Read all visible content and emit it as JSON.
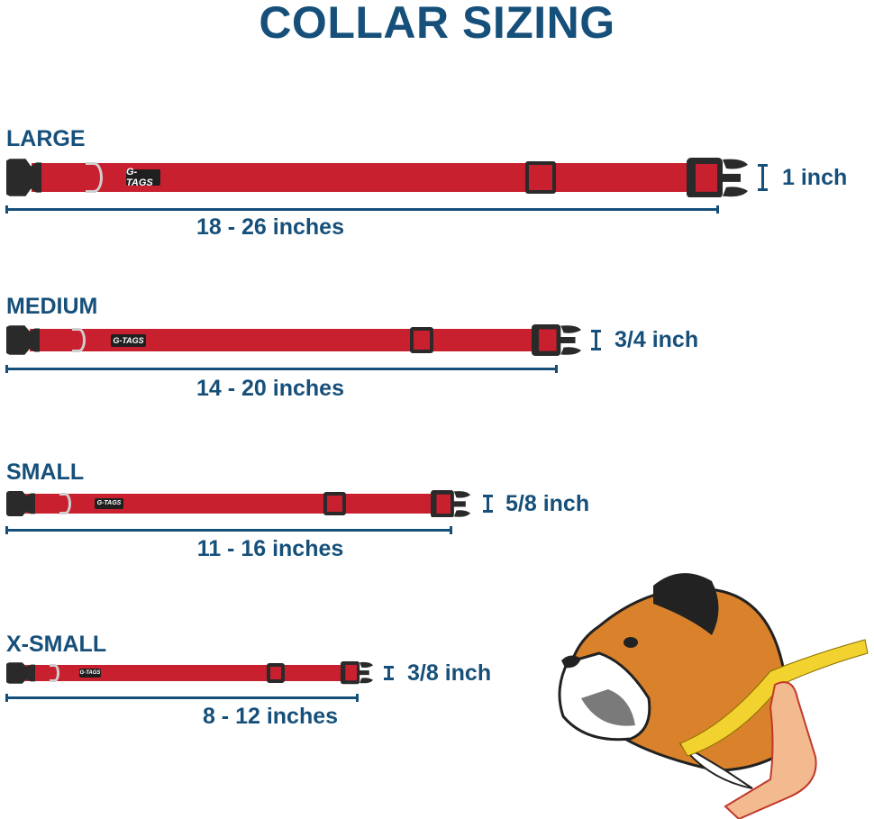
{
  "title": "COLLAR SIZING",
  "brand_tag": "G-TAGS",
  "colors": {
    "text": "#16507a",
    "strap": "#c8202f",
    "hardware": "#2a2a2a",
    "tape": "#f2d22e"
  },
  "sizes": [
    {
      "label": "LARGE",
      "range": "18 - 26 inches",
      "width": "1 inch"
    },
    {
      "label": "MEDIUM",
      "range": "14 - 20 inches",
      "width": "3/4 inch"
    },
    {
      "label": "SMALL",
      "range": "11 - 16 inches",
      "width": "5/8 inch"
    },
    {
      "label": "X-SMALL",
      "range": "8 - 12 inches",
      "width": "3/8 inch"
    }
  ],
  "illustration": "boxer-dog-neck-measurement"
}
